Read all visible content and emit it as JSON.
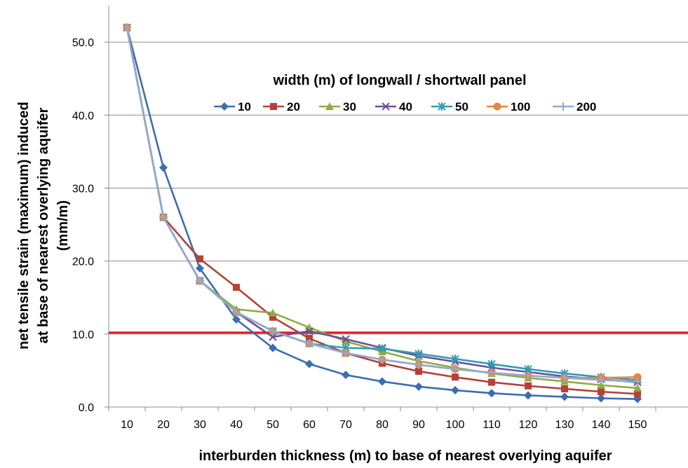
{
  "chart_data": {
    "type": "line",
    "xlabel": "interburden thickness  (m) to base of nearest overlying aquifer",
    "ylabel_line1": "net tensile strain (maximum) induced",
    "ylabel_line2": "at base of nearest overlying aquifer",
    "ylabel_line3": "(mm/m)",
    "legend_title": "width (m) of longwall / shortwall panel",
    "categories": [
      "10",
      "20",
      "30",
      "40",
      "50",
      "60",
      "70",
      "80",
      "90",
      "100",
      "110",
      "120",
      "130",
      "140",
      "150"
    ],
    "y_ticks": [
      "0.0",
      "10.0",
      "20.0",
      "30.0",
      "40.0",
      "50.0"
    ],
    "ylim": [
      0,
      55
    ],
    "grid": "horizontal",
    "threshold": {
      "value": 10.2,
      "color": "#e31a1c"
    },
    "series": [
      {
        "name": "10",
        "color": "#3c6db0",
        "marker": "diamond",
        "values": [
          52.0,
          32.8,
          19.0,
          12.0,
          8.1,
          5.9,
          4.4,
          3.5,
          2.8,
          2.3,
          1.9,
          1.6,
          1.4,
          1.2,
          1.1
        ]
      },
      {
        "name": "20",
        "color": "#b5413a",
        "marker": "square",
        "values": [
          52.0,
          26.0,
          20.3,
          16.4,
          12.3,
          9.4,
          7.4,
          6.0,
          4.9,
          4.1,
          3.4,
          2.9,
          2.5,
          2.1,
          1.8
        ]
      },
      {
        "name": "30",
        "color": "#8fae3f",
        "marker": "triangle",
        "values": [
          52.0,
          26.0,
          17.3,
          13.4,
          12.9,
          10.9,
          9.0,
          7.6,
          6.3,
          5.4,
          4.6,
          4.0,
          3.5,
          3.0,
          2.6
        ]
      },
      {
        "name": "40",
        "color": "#6c4f97",
        "marker": "x",
        "values": [
          52.0,
          26.0,
          17.3,
          13.0,
          9.6,
          10.4,
          9.3,
          8.1,
          7.0,
          6.2,
          5.4,
          4.8,
          4.2,
          3.8,
          3.4
        ]
      },
      {
        "name": "50",
        "color": "#2f9db5",
        "marker": "star",
        "values": [
          52.0,
          26.0,
          17.3,
          13.0,
          10.4,
          8.7,
          8.1,
          8.0,
          7.3,
          6.6,
          5.9,
          5.2,
          4.6,
          4.1,
          3.7
        ]
      },
      {
        "name": "100",
        "color": "#e8863a",
        "marker": "circle",
        "values": [
          52.0,
          26.0,
          17.3,
          13.0,
          10.4,
          8.7,
          7.4,
          6.5,
          5.8,
          5.2,
          4.7,
          4.3,
          4.0,
          4.0,
          4.1
        ]
      },
      {
        "name": "200",
        "color": "#92a9d4",
        "marker": "plus",
        "values": [
          52.0,
          26.0,
          17.3,
          13.0,
          10.4,
          8.7,
          7.4,
          6.5,
          5.8,
          5.2,
          4.7,
          4.3,
          4.0,
          3.7,
          3.5
        ]
      }
    ]
  }
}
